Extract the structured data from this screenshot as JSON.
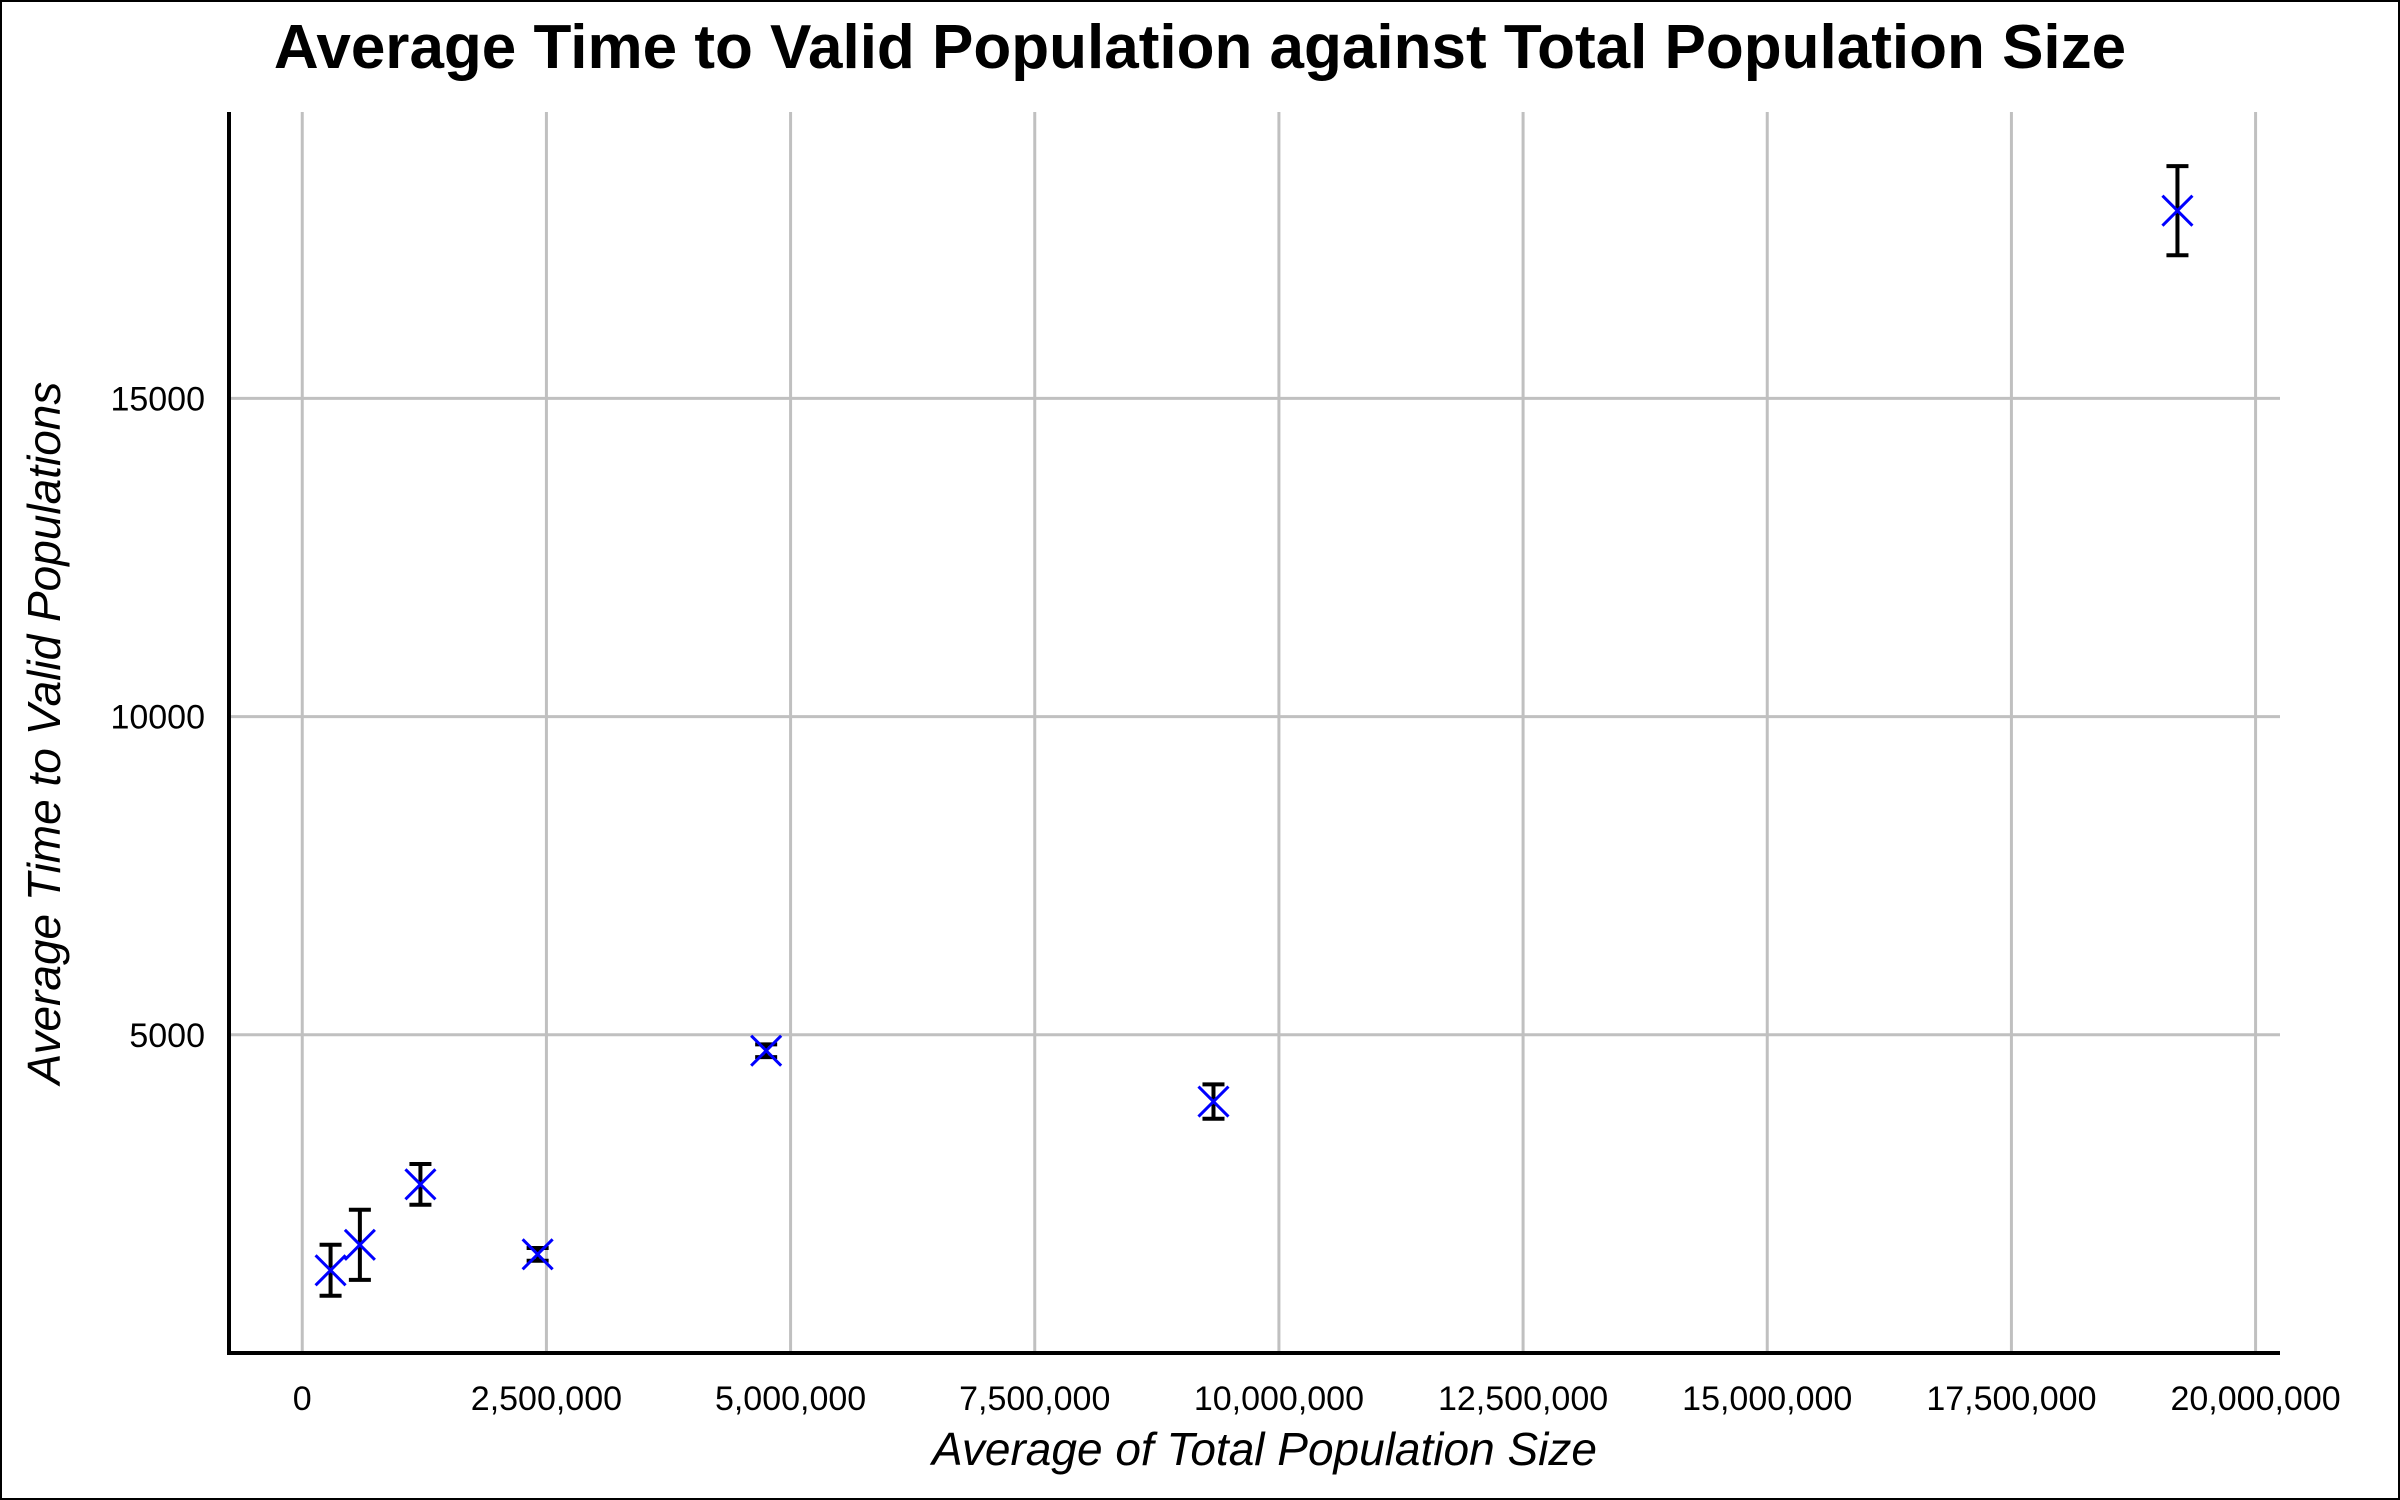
{
  "chart_data": {
    "type": "scatter",
    "title": "Average Time to Valid Population against Total Population Size",
    "xlabel": "Average of Total Population Size",
    "ylabel": "Average Time to Valid Populations",
    "xlim": [
      -750000,
      20250000
    ],
    "ylim": [
      0,
      19500
    ],
    "x_ticks": [
      0,
      2500000,
      5000000,
      7500000,
      10000000,
      12500000,
      15000000,
      17500000,
      20000000
    ],
    "x_tick_labels": [
      "0",
      "2,500,000",
      "5,000,000",
      "7,500,000",
      "10,000,000",
      "12,500,000",
      "15,000,000",
      "17,500,000",
      "20,000,000"
    ],
    "y_ticks": [
      5000,
      10000,
      15000
    ],
    "y_tick_labels": [
      "5000",
      "10000",
      "15000"
    ],
    "grid": true,
    "legend": "none",
    "marker_color": "#0000ff",
    "errorbar_color": "#000000",
    "points": [
      {
        "x": 290000,
        "y": 1300,
        "err": 400
      },
      {
        "x": 590000,
        "y": 1700,
        "err": 550
      },
      {
        "x": 1210000,
        "y": 2650,
        "err": 320
      },
      {
        "x": 2410000,
        "y": 1550,
        "err": 100
      },
      {
        "x": 4750000,
        "y": 4750,
        "err": 100
      },
      {
        "x": 9330000,
        "y": 3950,
        "err": 270
      },
      {
        "x": 19200000,
        "y": 17950,
        "err": 700
      }
    ]
  }
}
